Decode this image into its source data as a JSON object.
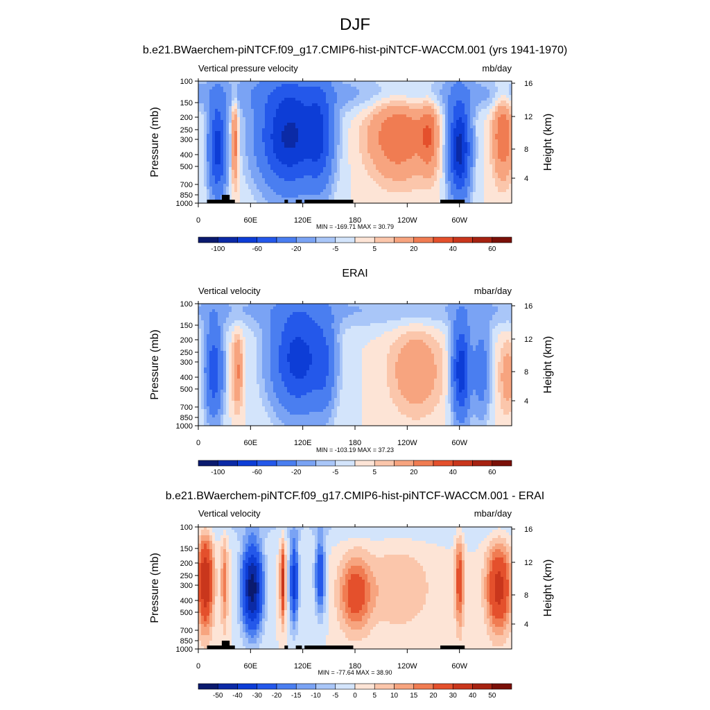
{
  "figure": {
    "title": "DJF"
  },
  "chart_data": [
    {
      "type": "heatmap",
      "title": "b.e21.BWaerchem-piNTCF.f09_g17.CMIP6-hist-piNTCF-WACCM.001 (yrs 1941-1970)",
      "left_label": "Vertical pressure velocity",
      "units": "mb/day",
      "ylabel": "Pressure (mb)",
      "ylabel_right": "Height (km)",
      "x_ticks": [
        "0",
        "60E",
        "120E",
        "180",
        "120W",
        "60W"
      ],
      "y_ticks": [
        "100",
        "150",
        "200",
        "250",
        "300",
        "400",
        "500",
        "700",
        "850",
        "1000"
      ],
      "y_ticks_right": [
        "16",
        "12",
        "8",
        "4"
      ],
      "stats": "MIN = -169.71  MAX =  30.79",
      "colorbar_labels": [
        "-100",
        "-60",
        "-20",
        "-5",
        "5",
        "20",
        "40",
        "60"
      ],
      "min": -169.71,
      "max": 30.79
    },
    {
      "type": "heatmap",
      "title": "ERAI",
      "left_label": "Vertical velocity",
      "units": "mbar/day",
      "ylabel": "Pressure (mb)",
      "ylabel_right": "Height (km)",
      "x_ticks": [
        "0",
        "60E",
        "120E",
        "180",
        "120W",
        "60W"
      ],
      "y_ticks": [
        "100",
        "150",
        "200",
        "250",
        "300",
        "400",
        "500",
        "700",
        "850",
        "1000"
      ],
      "y_ticks_right": [
        "16",
        "12",
        "8",
        "4"
      ],
      "stats": "MIN = -103.19  MAX =  37.23",
      "colorbar_labels": [
        "-100",
        "-60",
        "-20",
        "-5",
        "5",
        "20",
        "40",
        "60"
      ],
      "min": -103.19,
      "max": 37.23
    },
    {
      "type": "heatmap",
      "title": "b.e21.BWaerchem-piNTCF.f09_g17.CMIP6-hist-piNTCF-WACCM.001 - ERAI",
      "left_label": "Vertical velocity",
      "units": "mbar/day",
      "ylabel": "Pressure (mb)",
      "ylabel_right": "Height (km)",
      "x_ticks": [
        "0",
        "60E",
        "120E",
        "180",
        "120W",
        "60W"
      ],
      "y_ticks": [
        "100",
        "150",
        "200",
        "250",
        "300",
        "400",
        "500",
        "700",
        "850",
        "1000"
      ],
      "y_ticks_right": [
        "16",
        "12",
        "8",
        "4"
      ],
      "stats": "MIN = -77.64  MAX =  38.90",
      "colorbar_labels": [
        "-50",
        "-40",
        "-30",
        "-20",
        "-15",
        "-10",
        "-5",
        "0",
        "5",
        "10",
        "15",
        "20",
        "30",
        "40",
        "50"
      ],
      "min": -77.64,
      "max": 38.9
    }
  ],
  "colors": {
    "colormap": [
      "#0a1a6e",
      "#0b2aa6",
      "#0d3dd6",
      "#2458ea",
      "#4a7ef0",
      "#7aa3f4",
      "#a9c6f8",
      "#d3e4fb",
      "#fde4d6",
      "#fbc6ab",
      "#f7a47f",
      "#f07c52",
      "#e4502c",
      "#c9361c",
      "#a62211",
      "#7a1008"
    ],
    "topography": "#000000"
  }
}
